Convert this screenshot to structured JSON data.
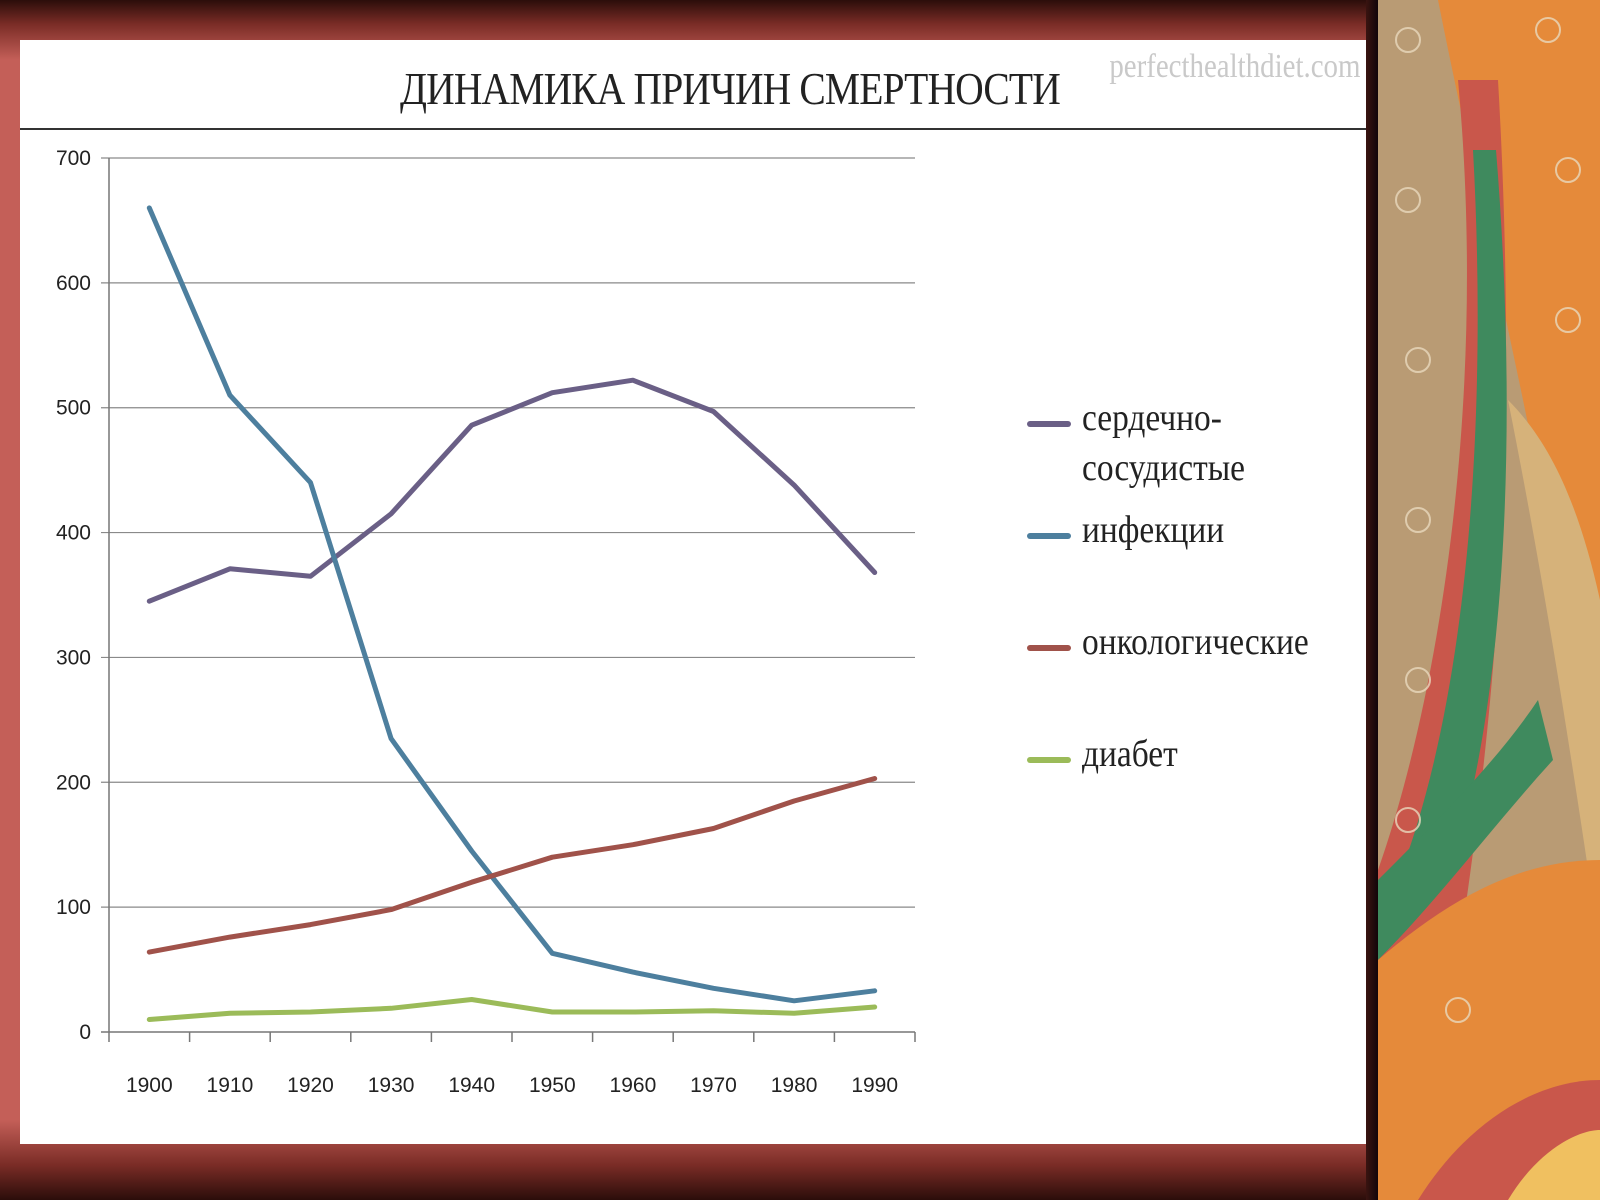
{
  "watermark": "perfecthealthdiet.com",
  "chart_data": {
    "type": "line",
    "title": "ДИНАМИКА ПРИЧИН СМЕРТНОСТИ",
    "xlabel": "",
    "ylabel": "",
    "x": [
      1900,
      1910,
      1920,
      1930,
      1940,
      1950,
      1960,
      1970,
      1980,
      1990
    ],
    "ylim": [
      0,
      700
    ],
    "yticks": [
      0,
      100,
      200,
      300,
      400,
      500,
      600,
      700
    ],
    "grid": true,
    "legend_position": "right",
    "series": [
      {
        "name": "сердечно-сосудистые",
        "legend_lines": [
          "сердечно-",
          "сосудистые"
        ],
        "color": "#6a5f86",
        "values": [
          345,
          371,
          365,
          415,
          486,
          512,
          522,
          497,
          438,
          368
        ]
      },
      {
        "name": "инфекции",
        "legend_lines": [
          "инфекции"
        ],
        "color": "#4d7f9e",
        "values": [
          660,
          510,
          440,
          235,
          145,
          63,
          48,
          35,
          25,
          33
        ]
      },
      {
        "name": "онкологические",
        "legend_lines": [
          "онкологические"
        ],
        "color": "#a0524a",
        "values": [
          64,
          76,
          86,
          98,
          120,
          140,
          150,
          163,
          185,
          203
        ]
      },
      {
        "name": "диабет",
        "legend_lines": [
          "диабет"
        ],
        "color": "#9bbb59",
        "values": [
          10,
          15,
          16,
          19,
          26,
          16,
          16,
          17,
          15,
          20
        ]
      }
    ]
  }
}
